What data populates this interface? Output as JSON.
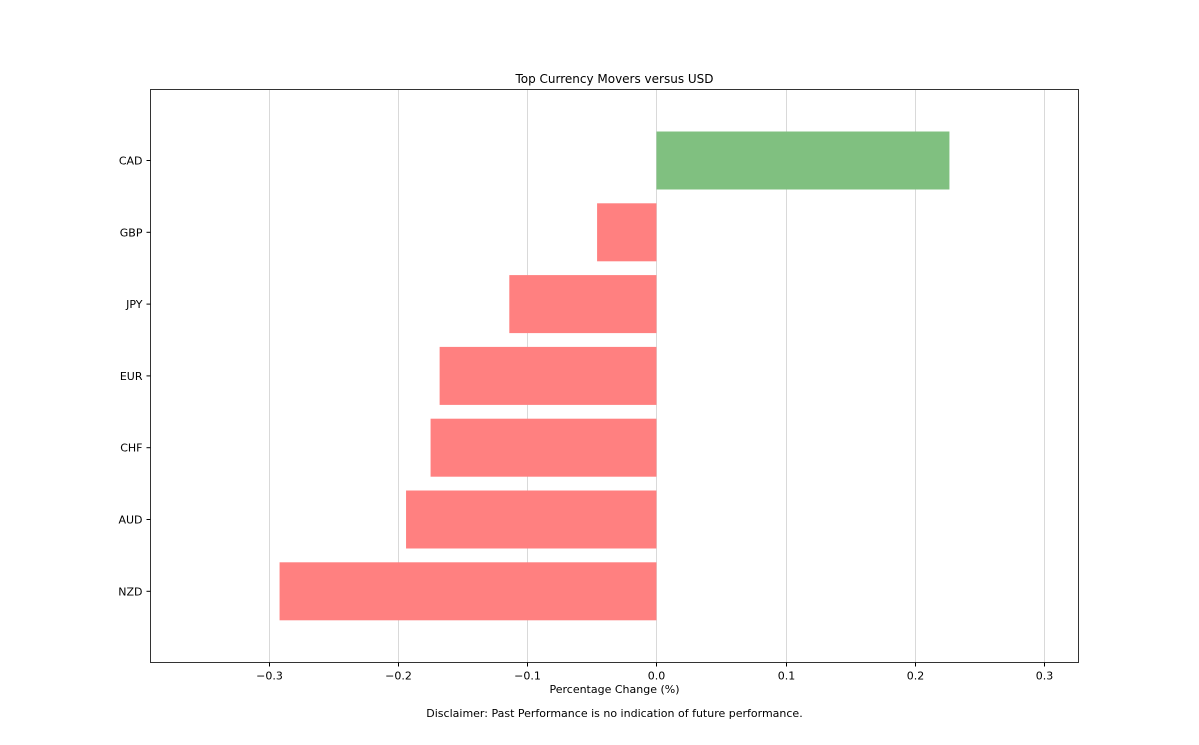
{
  "chart_data": {
    "type": "bar",
    "orientation": "horizontal",
    "title": "Top Currency Movers versus USD",
    "xlabel": "Percentage Change (%)",
    "ylabel": "",
    "categories": [
      "CAD",
      "GBP",
      "JPY",
      "EUR",
      "CHF",
      "AUD",
      "NZD"
    ],
    "values": [
      0.227,
      -0.046,
      -0.114,
      -0.168,
      -0.175,
      -0.194,
      -0.292
    ],
    "xlim": [
      -0.392,
      0.327
    ],
    "xticks": [
      -0.3,
      -0.2,
      -0.1,
      0.0,
      0.1,
      0.2,
      0.3
    ],
    "xtick_labels": [
      "−0.3",
      "−0.2",
      "−0.1",
      "0.0",
      "0.1",
      "0.2",
      "0.3"
    ],
    "grid": "vertical",
    "legend": "none",
    "colors": {
      "positive": "#80c080",
      "negative": "#ff8080",
      "grid": "#d9d9d9",
      "frame": "#333333"
    }
  },
  "footer": {
    "disclaimer": "Disclaimer: Past Performance is no indication of future performance."
  }
}
